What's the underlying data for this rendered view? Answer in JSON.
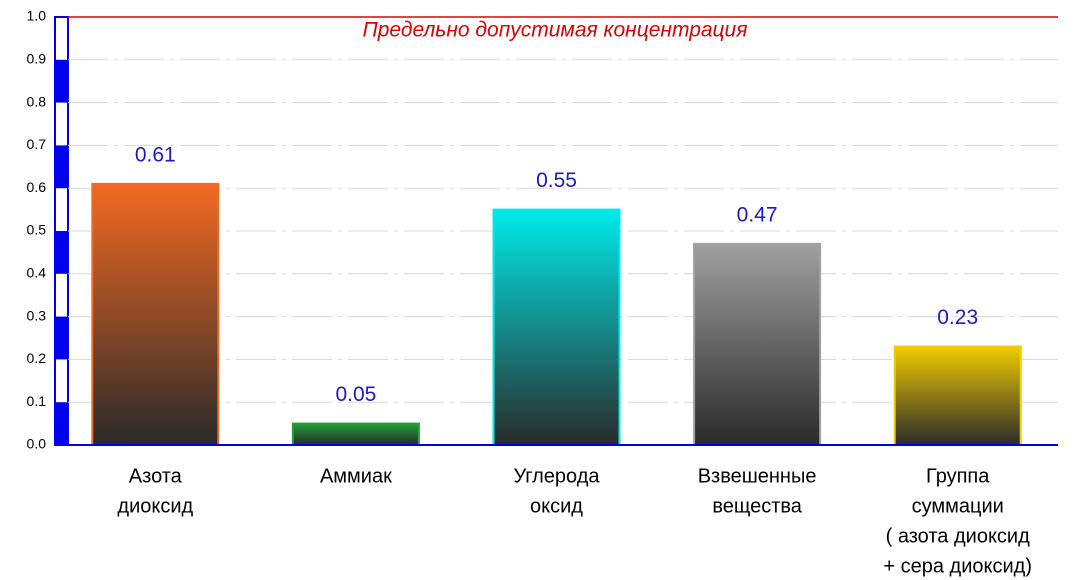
{
  "chart_data": {
    "type": "bar",
    "categories": [
      [
        "Азота",
        "диоксид"
      ],
      [
        "Аммиак"
      ],
      [
        "Углерода",
        "оксид"
      ],
      [
        "Взвешенные",
        "вещества"
      ],
      [
        "Группа",
        "суммации",
        "( азота диоксид",
        "+ сера диоксид)"
      ]
    ],
    "values": [
      0.61,
      0.05,
      0.55,
      0.47,
      0.23
    ],
    "colors": [
      "#f26a22",
      "#22a03a",
      "#00eaea",
      "#a0a0a0",
      "#f0cc00"
    ],
    "ylim": [
      0,
      1
    ],
    "yticks": [
      {
        "value": 0,
        "label": "0.0"
      },
      0.1,
      0.2,
      0.3,
      0.4,
      0.5,
      0.6,
      0.7,
      0.8,
      0.9,
      {
        "value": 1,
        "label": "1.0"
      }
    ],
    "grid": true,
    "limit_line": {
      "value": 1,
      "label": "Предельно допустимая концентрация",
      "color": "#e00000"
    }
  }
}
